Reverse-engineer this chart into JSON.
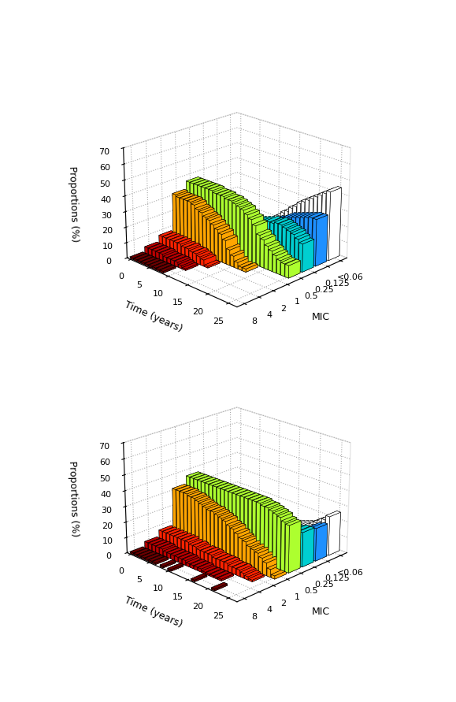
{
  "mic_labels": [
    "<0.06",
    "0.125",
    "0.25",
    "0.5",
    "1",
    "2",
    "4",
    "8"
  ],
  "mic_colors": [
    "#FFFFFF",
    "#1E90FF",
    "#00CED1",
    "#ADFF2F",
    "#FFA500",
    "#FF2200",
    "#BB0000",
    "#6B0000"
  ],
  "mic_edge_colors": [
    "#000000",
    "#000000",
    "#000000",
    "#000000",
    "#000000",
    "#000000",
    "#000000",
    "#000000"
  ],
  "time_values": [
    0,
    1,
    2,
    3,
    4,
    5,
    6,
    7,
    8,
    9,
    10,
    11,
    12,
    13,
    14,
    15,
    16,
    17,
    18,
    19,
    20,
    21,
    22,
    23,
    24,
    25
  ],
  "ylabel": "Proportions (%)",
  "xlabel_time": "Time (years)",
  "xlabel_mic": "MIC",
  "zlim": [
    0,
    70
  ],
  "zticks": [
    0,
    10,
    20,
    30,
    40,
    50,
    60,
    70
  ],
  "elev": 22,
  "azim": 45,
  "panel_a_data": {
    "t0": [
      2,
      2,
      14,
      37,
      32,
      8,
      4,
      1
    ],
    "t1": [
      2,
      3,
      14,
      37,
      31,
      8,
      4,
      1
    ],
    "t2": [
      2,
      3,
      14,
      37,
      31,
      8,
      4,
      1
    ],
    "t3": [
      2,
      3,
      14,
      37,
      31,
      8,
      4,
      1
    ],
    "t4": [
      2,
      3,
      14,
      37,
      31,
      8,
      4,
      1
    ],
    "t5": [
      3,
      4,
      14,
      37,
      30,
      8,
      3,
      1
    ],
    "t6": [
      4,
      5,
      15,
      37,
      28,
      7,
      3,
      1
    ],
    "t7": [
      5,
      6,
      15,
      36,
      27,
      7,
      3,
      1
    ],
    "t8": [
      6,
      7,
      16,
      36,
      25,
      6,
      3,
      1
    ],
    "t9": [
      8,
      8,
      16,
      36,
      24,
      6,
      2,
      0
    ],
    "t10": [
      10,
      10,
      17,
      35,
      22,
      5,
      1,
      0
    ],
    "t11": [
      12,
      11,
      18,
      35,
      20,
      4,
      0,
      0
    ],
    "t12": [
      15,
      13,
      19,
      34,
      18,
      1,
      0,
      0
    ],
    "t13": [
      17,
      15,
      20,
      33,
      15,
      0,
      0,
      0
    ],
    "t14": [
      20,
      17,
      21,
      32,
      10,
      0,
      0,
      0
    ],
    "t15": [
      22,
      19,
      22,
      30,
      7,
      0,
      0,
      0
    ],
    "t16": [
      25,
      20,
      23,
      28,
      4,
      0,
      0,
      0
    ],
    "t17": [
      27,
      22,
      24,
      25,
      2,
      0,
      0,
      0
    ],
    "t18": [
      30,
      24,
      24,
      20,
      2,
      0,
      0,
      0
    ],
    "t19": [
      32,
      25,
      25,
      18,
      0,
      0,
      0,
      0
    ],
    "t20": [
      34,
      26,
      25,
      15,
      0,
      0,
      0,
      0
    ],
    "t21": [
      36,
      27,
      24,
      13,
      0,
      0,
      0,
      0
    ],
    "t22": [
      38,
      28,
      23,
      11,
      0,
      0,
      0,
      0
    ],
    "t23": [
      40,
      29,
      22,
      9,
      0,
      0,
      0,
      0
    ],
    "t24": [
      42,
      30,
      20,
      8,
      0,
      0,
      0,
      0
    ],
    "t25": [
      44,
      30,
      18,
      8,
      0,
      0,
      0,
      0
    ]
  },
  "panel_b_data": {
    "t0": [
      2,
      2,
      14,
      37,
      32,
      8,
      4,
      1
    ],
    "t1": [
      2,
      2,
      14,
      37,
      32,
      8,
      4,
      1
    ],
    "t2": [
      2,
      2,
      14,
      37,
      32,
      8,
      4,
      1
    ],
    "t3": [
      2,
      2,
      14,
      37,
      32,
      8,
      4,
      1
    ],
    "t4": [
      2,
      3,
      14,
      37,
      31,
      8,
      4,
      1
    ],
    "t5": [
      3,
      3,
      14,
      37,
      31,
      8,
      3,
      1
    ],
    "t6": [
      3,
      4,
      14,
      37,
      30,
      8,
      3,
      1
    ],
    "t7": [
      4,
      4,
      15,
      37,
      29,
      8,
      3,
      0
    ],
    "t8": [
      4,
      5,
      15,
      37,
      28,
      7,
      3,
      1
    ],
    "t9": [
      5,
      6,
      15,
      37,
      27,
      7,
      3,
      0
    ],
    "t10": [
      5,
      6,
      15,
      37,
      27,
      6,
      3,
      1
    ],
    "t11": [
      6,
      7,
      16,
      37,
      26,
      6,
      2,
      0
    ],
    "t12": [
      7,
      7,
      16,
      37,
      25,
      6,
      2,
      0
    ],
    "t13": [
      7,
      8,
      16,
      37,
      24,
      6,
      2,
      0
    ],
    "t14": [
      8,
      9,
      17,
      37,
      22,
      5,
      2,
      0
    ],
    "t15": [
      9,
      10,
      17,
      37,
      21,
      5,
      1,
      0
    ],
    "t16": [
      10,
      10,
      17,
      37,
      19,
      5,
      1,
      1
    ],
    "t17": [
      11,
      11,
      18,
      37,
      17,
      5,
      1,
      0
    ],
    "t18": [
      12,
      12,
      18,
      37,
      16,
      4,
      1,
      0
    ],
    "t19": [
      13,
      13,
      19,
      36,
      14,
      4,
      1,
      0
    ],
    "t20": [
      14,
      14,
      19,
      36,
      13,
      4,
      0,
      0
    ],
    "t21": [
      16,
      15,
      20,
      35,
      12,
      3,
      0,
      1
    ],
    "t22": [
      18,
      16,
      20,
      34,
      10,
      2,
      0,
      0
    ],
    "t23": [
      20,
      18,
      21,
      33,
      8,
      1,
      0,
      0
    ],
    "t24": [
      22,
      20,
      22,
      31,
      5,
      0,
      0,
      0
    ],
    "t25": [
      25,
      21,
      22,
      30,
      2,
      0,
      0,
      0
    ]
  }
}
